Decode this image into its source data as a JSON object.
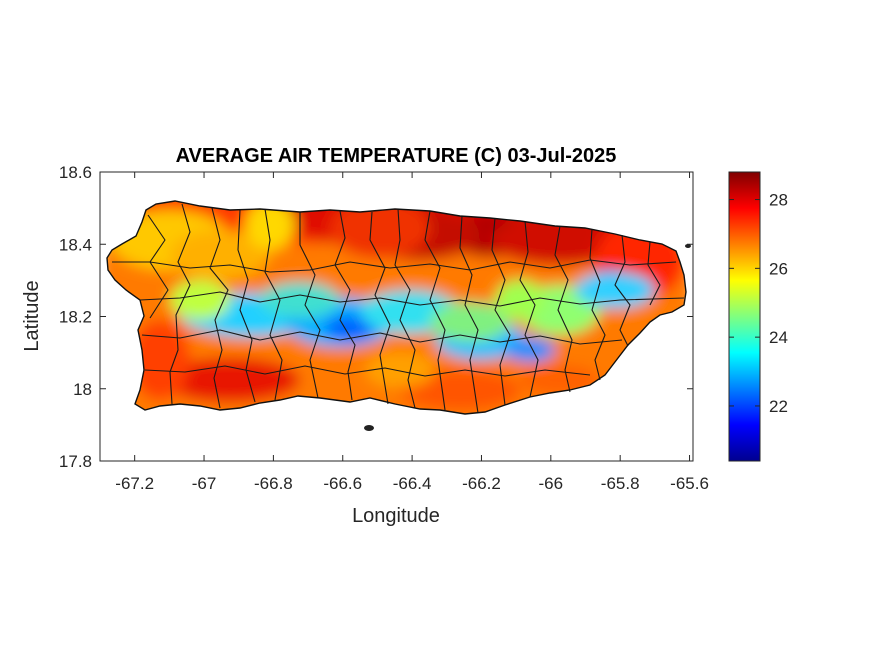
{
  "chart_data": {
    "type": "heatmap",
    "title": "AVERAGE AIR TEMPERATURE (C) 03-Jul-2025",
    "xlabel": "Longitude",
    "ylabel": "Latitude",
    "xlim": [
      -67.3,
      -65.59
    ],
    "ylim": [
      17.8,
      18.6
    ],
    "x_ticks": [
      -67.2,
      -67,
      -66.8,
      -66.6,
      -66.4,
      -66.2,
      -66,
      -65.8,
      -65.6
    ],
    "x_tick_labels": [
      "-67.2",
      "-67",
      "-66.8",
      "-66.6",
      "-66.4",
      "-66.2",
      "-66",
      "-65.8",
      "-65.6"
    ],
    "y_ticks": [
      17.8,
      18,
      18.2,
      18.4,
      18.6
    ],
    "y_tick_labels": [
      "17.8",
      "18",
      "18.2",
      "18.4",
      "18.6"
    ],
    "colorbar": {
      "colormap": "jet",
      "range": [
        20.4,
        28.8
      ],
      "ticks": [
        22,
        24,
        26,
        28
      ],
      "tick_labels": [
        "22",
        "24",
        "26",
        "28"
      ]
    },
    "grid": false,
    "region": "Puerto Rico",
    "summary": {
      "coolest": "central mountain ridge, around 21-23 C",
      "warmest": "north coast near -66.2 and south coast, around 28 C"
    }
  }
}
